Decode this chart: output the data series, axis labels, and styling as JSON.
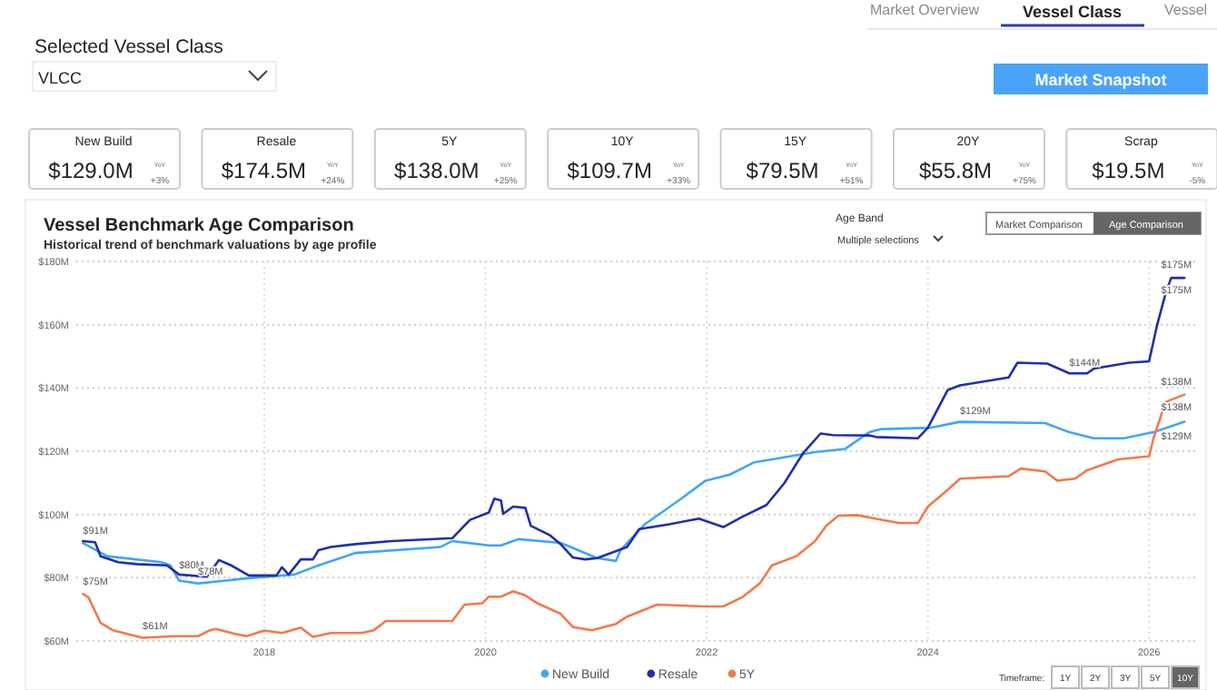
{
  "chart_data": [
    {
      "type": "other",
      "title": "Selected Vessel Class",
      "annotations": [
        "Market Overview",
        "Vessel Class",
        "Vessel",
        "VLCC",
        "Market Snapshot",
        "YoY",
        "+3%",
        "+24%",
        "+25%",
        "+33%",
        "+51%",
        "+75%",
        "-5%"
      ],
      "categories": [
        "New Build",
        "Resale",
        "5Y",
        "10Y",
        "15Y",
        "20Y",
        "Scrap"
      ],
      "value_labels": [
        "$129.0M",
        "$174.5M",
        "$138.0M",
        "$109.7M",
        "$79.5M",
        "$55.8M",
        "$19.5M"
      ]
    },
    {
      "type": "line",
      "title": "Vessel Benchmark Age Comparison",
      "subtitle": "Historical trend of benchmark valuations by age profile",
      "xlim": [
        2016.3,
        2026.45
      ],
      "xticks": [
        2018,
        2020,
        2022,
        2024,
        2026
      ],
      "ylim": [
        60,
        180
      ],
      "yticks": [
        {
          "value": 60,
          "label": "$60M"
        },
        {
          "value": 80,
          "label": "$80M"
        },
        {
          "value": 100,
          "label": "$100M"
        },
        {
          "value": 120,
          "label": "$120M"
        },
        {
          "value": 140,
          "label": "$140M"
        },
        {
          "value": 160,
          "label": "$160M"
        },
        {
          "value": 180,
          "label": "$180M"
        }
      ],
      "grid": true,
      "legend": "bottom",
      "marker": "none",
      "line_style": "solid",
      "series": [
        {
          "name": "New Build",
          "color": "#41a5f5",
          "x": [
            2016.36,
            2016.58,
            2017.07,
            2017.15,
            2017.23,
            2017.4,
            2017.9,
            2018.27,
            2018.49,
            2018.82,
            2019.59,
            2019.7,
            2020.03,
            2020.14,
            2020.3,
            2020.68,
            2021.01,
            2021.18,
            2021.22,
            2021.44,
            2021.77,
            2021.99,
            2022.21,
            2022.43,
            2022.65,
            2022.98,
            2023.25,
            2023.47,
            2023.58,
            2024.02,
            2024.29,
            2025.06,
            2025.28,
            2025.5,
            2025.77,
            2026.04,
            2026.32
          ],
          "values": [
            91,
            86.8,
            84.9,
            83.9,
            79.1,
            78.2,
            80,
            81,
            83.9,
            87.8,
            89.7,
            91.6,
            90.2,
            90.2,
            92.2,
            91,
            86.2,
            85.3,
            88.7,
            96.9,
            105,
            110.7,
            112.6,
            116.5,
            117.8,
            119.7,
            120.7,
            126,
            127,
            127.4,
            129.3,
            128.9,
            126,
            124.1,
            124.1,
            126,
            129.3
          ]
        },
        {
          "name": "Resale",
          "color": "#1f2fa8",
          "x": [
            2016.36,
            2016.47,
            2016.52,
            2016.68,
            2016.85,
            2017.12,
            2017.23,
            2017.48,
            2017.53,
            2017.59,
            2017.7,
            2017.86,
            2018.11,
            2018.16,
            2018.22,
            2018.33,
            2018.44,
            2018.49,
            2018.6,
            2018.82,
            2019.15,
            2019.7,
            2019.86,
            2020.03,
            2020.08,
            2020.14,
            2020.16,
            2020.25,
            2020.36,
            2020.41,
            2020.58,
            2020.68,
            2020.79,
            2020.9,
            2021.01,
            2021.28,
            2021.39,
            2021.66,
            2021.93,
            2022.15,
            2022.32,
            2022.54,
            2022.7,
            2022.87,
            2023.03,
            2023.14,
            2023.47,
            2023.53,
            2023.91,
            2024.0,
            2024.18,
            2024.29,
            2024.73,
            2024.81,
            2025.08,
            2025.28,
            2025.44,
            2025.5,
            2025.82,
            2026.0,
            2026.07,
            2026.15,
            2026.2,
            2026.32
          ],
          "values": [
            91.6,
            91.2,
            86.8,
            84.9,
            84.3,
            83.9,
            81,
            80.3,
            82.6,
            85.6,
            83.9,
            80.7,
            80.7,
            83.3,
            81,
            85.8,
            85.8,
            88.7,
            89.7,
            90.6,
            91.6,
            92.5,
            98.3,
            100.6,
            105,
            104.4,
            100.2,
            102.5,
            102.1,
            96.4,
            93.5,
            90.6,
            86.4,
            85.8,
            86.2,
            89.7,
            95.4,
            96.9,
            98.7,
            96,
            99.2,
            103,
            109.8,
            119.3,
            125.6,
            125.1,
            125,
            124.5,
            124.1,
            127.4,
            139.4,
            140.8,
            143.3,
            148,
            147.7,
            144.6,
            144.6,
            146.1,
            148,
            148.4,
            159.5,
            170,
            174.8,
            174.8
          ]
        },
        {
          "name": "5Y",
          "color": "#f07a4a",
          "x": [
            2016.36,
            2016.41,
            2016.52,
            2016.63,
            2016.9,
            2017.18,
            2017.4,
            2017.51,
            2017.56,
            2017.73,
            2017.84,
            2018.0,
            2018.16,
            2018.33,
            2018.44,
            2018.6,
            2018.88,
            2018.99,
            2019.1,
            2019.7,
            2019.81,
            2019.97,
            2020.03,
            2020.14,
            2020.25,
            2020.36,
            2020.47,
            2020.68,
            2020.79,
            2020.96,
            2021.18,
            2021.28,
            2021.55,
            2021.99,
            2022.15,
            2022.32,
            2022.48,
            2022.59,
            2022.81,
            2022.98,
            2023.08,
            2023.19,
            2023.36,
            2023.58,
            2023.74,
            2023.91,
            2024.0,
            2024.18,
            2024.29,
            2024.73,
            2024.84,
            2025.06,
            2025.17,
            2025.33,
            2025.44,
            2025.72,
            2026.0,
            2026.04,
            2026.15,
            2026.32
          ],
          "values": [
            74.9,
            73.8,
            65.7,
            63.4,
            61,
            61.5,
            61.5,
            63.4,
            63.8,
            62.3,
            61.5,
            63.3,
            62.5,
            64.2,
            61.3,
            62.5,
            62.5,
            63.4,
            66.3,
            66.3,
            71.5,
            71.9,
            74,
            74,
            75.7,
            74.4,
            71.9,
            68.6,
            64.4,
            63.4,
            65.4,
            67.7,
            71.5,
            70.9,
            70.9,
            73.8,
            78.2,
            83.9,
            86.8,
            91.6,
            96.4,
            99.6,
            99.8,
            98.3,
            97.3,
            97.3,
            102.5,
            107.8,
            111.3,
            112.1,
            114.5,
            113.6,
            110.7,
            111.3,
            114,
            117.4,
            118.4,
            124.1,
            135.6,
            137.9
          ]
        }
      ],
      "annotations": [
        "Age Band",
        "Multiple selections",
        "Market Comparison",
        "Age Comparison",
        "Timeframe:",
        "1Y",
        "2Y",
        "3Y",
        "5Y",
        "10Y",
        {
          "text": "$91M",
          "x": 2016.36,
          "y": 91
        },
        {
          "text": "$80M",
          "x": 2017.23,
          "y": 80
        },
        {
          "text": "$78M",
          "x": 2017.4,
          "y": 78
        },
        {
          "text": "$75M",
          "x": 2016.36,
          "y": 75
        },
        {
          "text": "$61M",
          "x": 2016.9,
          "y": 61
        },
        {
          "text": "$129M",
          "x": 2024.29,
          "y": 129
        },
        {
          "text": "$144M",
          "x": 2025.28,
          "y": 144
        },
        {
          "text": "$175M",
          "x": 2026.32,
          "y": 175
        },
        {
          "text": "$175M",
          "x": 2026.32,
          "y": 175
        },
        {
          "text": "$138M",
          "x": 2026.32,
          "y": 138
        },
        {
          "text": "$138M",
          "x": 2026.32,
          "y": 138
        },
        {
          "text": "$129M",
          "x": 2026.32,
          "y": 129
        }
      ]
    }
  ]
}
